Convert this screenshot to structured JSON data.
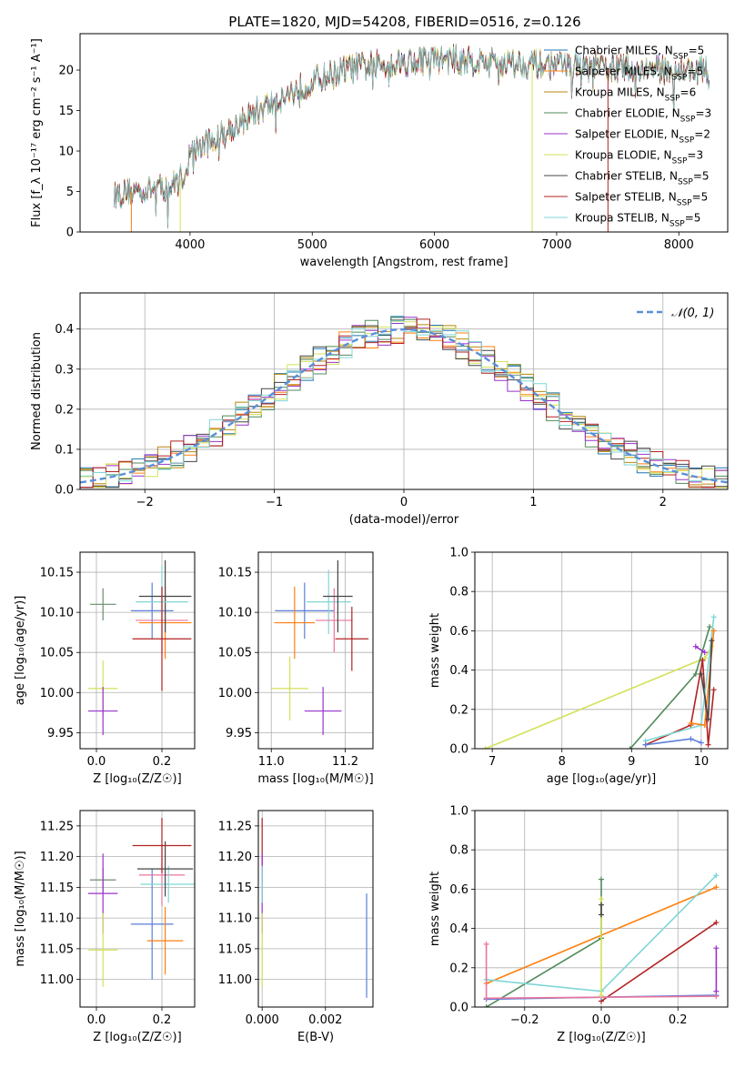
{
  "figure": {
    "title": "PLATE=1820, MJD=54208, FIBERID=0516, z=0.126"
  },
  "chart_data": [
    {
      "id": "spectrum",
      "type": "line",
      "xlabel": "wavelength [Angstrom, rest frame]",
      "ylabel": "Flux [f_λ 10⁻¹⁷ erg cm⁻² s⁻¹ A⁻¹]",
      "xlim": [
        3100,
        8400
      ],
      "ylim": [
        0,
        24.5
      ],
      "xticks": [
        4000,
        5000,
        6000,
        7000,
        8000
      ],
      "yticks": [
        0,
        5,
        10,
        15,
        20
      ],
      "grid": false,
      "legend": "upper-right",
      "x_start": 3380,
      "x_end": 8250,
      "continuum": [
        [
          3380,
          4.6
        ],
        [
          3600,
          5.2
        ],
        [
          3850,
          5.6
        ],
        [
          3950,
          7.0
        ],
        [
          4000,
          9.8
        ],
        [
          4300,
          12.4
        ],
        [
          4500,
          14.5
        ],
        [
          4800,
          17.0
        ],
        [
          5000,
          18.6
        ],
        [
          5300,
          20.2
        ],
        [
          5600,
          20.8
        ],
        [
          6000,
          21.4
        ],
        [
          6500,
          21.0
        ],
        [
          7000,
          20.6
        ],
        [
          7500,
          20.2
        ],
        [
          8000,
          20.0
        ],
        [
          8250,
          19.9
        ]
      ],
      "series": [
        {
          "name": "Chabrier MILES, N_SSP=5",
          "color": "#1f77b4"
        },
        {
          "name": "Salpeter MILES, N_SSP=5",
          "color": "#ff7f0e"
        },
        {
          "name": "Kroupa MILES, N_SSP=6",
          "color": "#b8860b"
        },
        {
          "name": "Chabrier ELODIE, N_SSP=3",
          "color": "#4f8a5a"
        },
        {
          "name": "Salpeter ELODIE, N_SSP=2",
          "color": "#9932cc"
        },
        {
          "name": "Kroupa ELODIE, N_SSP=3",
          "color": "#d4e157"
        },
        {
          "name": "Chabrier STELIB, N_SSP=5",
          "color": "#444444"
        },
        {
          "name": "Salpeter STELIB, N_SSP=5",
          "color": "#b22222"
        },
        {
          "name": "Kroupa STELIB, N_SSP=5",
          "color": "#7fd6d6"
        }
      ]
    },
    {
      "id": "residuals",
      "type": "line",
      "xlabel": "(data-model)/error",
      "ylabel": "Normed distribution",
      "xlim": [
        -2.5,
        2.5
      ],
      "ylim": [
        0,
        0.49
      ],
      "xticks": [
        -2,
        -1,
        0,
        1,
        2
      ],
      "yticks": [
        0.0,
        0.1,
        0.2,
        0.3,
        0.4
      ],
      "grid": true,
      "legend": "upper-right",
      "gaussian_label": "𝒩(0, 1)",
      "gaussian_color": "#5b8fd9"
    },
    {
      "id": "age-vs-z",
      "type": "scatter",
      "xlabel": "Z [log₁₀(Z/Z☉)]",
      "ylabel": "age  [log₁₀(age/yr)]",
      "xlim": [
        -0.05,
        0.3
      ],
      "ylim": [
        9.93,
        10.175
      ],
      "xticks": [
        0.0,
        0.2
      ],
      "yticks": [
        9.95,
        10.0,
        10.05,
        10.1,
        10.15
      ],
      "grid": true,
      "points": [
        {
          "x": 0.02,
          "y": 10.11,
          "xe": 0.04,
          "ye": 0.02,
          "color": "#6b8e6b"
        },
        {
          "x": 0.02,
          "y": 10.005,
          "xe": 0.045,
          "ye": 0.035,
          "color": "#d4e157"
        },
        {
          "x": 0.02,
          "y": 9.977,
          "xe": 0.045,
          "ye": 0.03,
          "color": "#9932cc"
        },
        {
          "x": 0.17,
          "y": 10.102,
          "xe": 0.065,
          "ye": 0.035,
          "color": "#5b7fd9"
        },
        {
          "x": 0.2,
          "y": 10.09,
          "xe": 0.08,
          "ye": 0.04,
          "color": "#e8749e"
        },
        {
          "x": 0.21,
          "y": 10.087,
          "xe": 0.08,
          "ye": 0.045,
          "color": "#ff7f0e"
        },
        {
          "x": 0.21,
          "y": 10.12,
          "xe": 0.08,
          "ye": 0.045,
          "color": "#444444"
        },
        {
          "x": 0.2,
          "y": 10.113,
          "xe": 0.08,
          "ye": 0.045,
          "color": "#7fd6d6"
        },
        {
          "x": 0.2,
          "y": 10.067,
          "xe": 0.09,
          "ye": 0.065,
          "color": "#b22222"
        }
      ]
    },
    {
      "id": "age-vs-mass",
      "type": "scatter",
      "xlabel": "mass [log₁₀(M/M☉)]",
      "ylabel": "",
      "xlim": [
        10.965,
        11.275
      ],
      "ylim": [
        9.93,
        10.175
      ],
      "xticks": [
        11.0,
        11.2
      ],
      "yticks": [
        9.95,
        10.0,
        10.05,
        10.1,
        10.15
      ],
      "grid": true,
      "points": [
        {
          "x": 11.09,
          "y": 10.102,
          "xe": 0.08,
          "ye": 0.035,
          "color": "#5b7fd9"
        },
        {
          "x": 11.063,
          "y": 10.087,
          "xe": 0.055,
          "ye": 0.045,
          "color": "#ff7f0e"
        },
        {
          "x": 11.05,
          "y": 10.005,
          "xe": 0.05,
          "ye": 0.04,
          "color": "#d4e157"
        },
        {
          "x": 11.14,
          "y": 9.977,
          "xe": 0.05,
          "ye": 0.03,
          "color": "#9932cc"
        },
        {
          "x": 11.155,
          "y": 10.113,
          "xe": 0.06,
          "ye": 0.04,
          "color": "#7fd6d6"
        },
        {
          "x": 11.17,
          "y": 10.09,
          "xe": 0.05,
          "ye": 0.04,
          "color": "#e8749e"
        },
        {
          "x": 11.18,
          "y": 10.12,
          "xe": 0.04,
          "ye": 0.045,
          "color": "#444444"
        },
        {
          "x": 11.218,
          "y": 10.067,
          "xe": 0.045,
          "ye": 0.04,
          "color": "#b22222"
        }
      ]
    },
    {
      "id": "weight-vs-age",
      "type": "line",
      "xlabel": "age  [log₁₀(age/yr)]",
      "ylabel": "mass weight",
      "xlim": [
        6.75,
        10.38
      ],
      "ylim": [
        0,
        1.0
      ],
      "xticks": [
        7,
        8,
        9,
        10
      ],
      "yticks": [
        0.0,
        0.2,
        0.4,
        0.6,
        0.8,
        1.0
      ],
      "grid": true,
      "series": [
        {
          "color": "#d4e157",
          "points": [
            [
              6.9,
              0.0
            ],
            [
              10.05,
              0.46
            ],
            [
              10.15,
              0.52
            ]
          ]
        },
        {
          "color": "#4f8a5a",
          "points": [
            [
              8.98,
              0.0
            ],
            [
              9.92,
              0.38
            ],
            [
              10.12,
              0.62
            ]
          ]
        },
        {
          "color": "#b22222",
          "points": [
            [
              9.2,
              0.02
            ],
            [
              9.85,
              0.12
            ],
            [
              10.02,
              0.45
            ],
            [
              10.1,
              0.02
            ],
            [
              10.18,
              0.3
            ]
          ]
        },
        {
          "color": "#7fd6d6",
          "points": [
            [
              9.2,
              0.04
            ],
            [
              10.0,
              0.12
            ],
            [
              10.18,
              0.67
            ]
          ]
        },
        {
          "color": "#5b7fd9",
          "points": [
            [
              9.2,
              0.02
            ],
            [
              9.85,
              0.05
            ],
            [
              10.0,
              0.03
            ]
          ]
        },
        {
          "color": "#ff7f0e",
          "points": [
            [
              9.85,
              0.13
            ],
            [
              10.05,
              0.12
            ],
            [
              10.18,
              0.6
            ]
          ]
        },
        {
          "color": "#9932cc",
          "points": [
            [
              9.92,
              0.52
            ],
            [
              10.05,
              0.49
            ]
          ]
        },
        {
          "color": "#444444",
          "points": [
            [
              10.0,
              0.38
            ],
            [
              10.1,
              0.15
            ],
            [
              10.15,
              0.55
            ]
          ]
        }
      ]
    },
    {
      "id": "mass-vs-z",
      "type": "scatter",
      "xlabel": "Z [log₁₀(Z/Z☉)]",
      "ylabel": "mass [log₁₀(M/M☉)]",
      "xlim": [
        -0.05,
        0.3
      ],
      "ylim": [
        10.955,
        11.275
      ],
      "xticks": [
        0.0,
        0.2
      ],
      "yticks": [
        11.0,
        11.05,
        11.1,
        11.15,
        11.2,
        11.25
      ],
      "grid": true,
      "points": [
        {
          "x": 0.02,
          "y": 11.162,
          "xe": 0.04,
          "ye": 0.02,
          "color": "#6b8e6b"
        },
        {
          "x": 0.02,
          "y": 11.14,
          "xe": 0.045,
          "ye": 0.065,
          "color": "#9932cc"
        },
        {
          "x": 0.02,
          "y": 11.048,
          "xe": 0.045,
          "ye": 0.06,
          "color": "#d4e157"
        },
        {
          "x": 0.17,
          "y": 11.09,
          "xe": 0.065,
          "ye": 0.09,
          "color": "#5b7fd9"
        },
        {
          "x": 0.21,
          "y": 11.063,
          "xe": 0.055,
          "ye": 0.055,
          "color": "#ff7f0e"
        },
        {
          "x": 0.2,
          "y": 11.17,
          "xe": 0.07,
          "ye": 0.05,
          "color": "#e8749e"
        },
        {
          "x": 0.22,
          "y": 11.155,
          "xe": 0.085,
          "ye": 0.03,
          "color": "#7fd6d6"
        },
        {
          "x": 0.21,
          "y": 11.18,
          "xe": 0.085,
          "ye": 0.045,
          "color": "#444444"
        },
        {
          "x": 0.2,
          "y": 11.218,
          "xe": 0.09,
          "ye": 0.045,
          "color": "#b22222"
        }
      ]
    },
    {
      "id": "mass-vs-ebv",
      "type": "scatter",
      "xlabel": "E(B-V)",
      "ylabel": "",
      "xlim": [
        -0.00012,
        0.0035
      ],
      "ylim": [
        10.955,
        11.275
      ],
      "xticks": [
        0.0,
        0.002
      ],
      "xtick_labels": [
        "0.000",
        "0.002"
      ],
      "yticks": [
        11.0,
        11.05,
        11.1,
        11.15,
        11.2,
        11.25
      ],
      "grid": true,
      "points": [
        {
          "x": 0.0,
          "y": 11.218,
          "xe": 0.0,
          "ye": 0.045,
          "color": "#b22222"
        },
        {
          "x": 0.0,
          "y": 11.14,
          "xe": 0.0,
          "ye": 0.065,
          "color": "#9932cc"
        },
        {
          "x": 0.0,
          "y": 11.048,
          "xe": 0.0,
          "ye": 0.06,
          "color": "#d4e157"
        },
        {
          "x": 0.0,
          "y": 11.155,
          "xe": 0.0,
          "ye": 0.03,
          "color": "#7fd6d6"
        },
        {
          "x": 0.0033,
          "y": 11.055,
          "xe": 0.0,
          "ye": 0.085,
          "color": "#5b7fd9"
        }
      ]
    },
    {
      "id": "weight-vs-z",
      "type": "line",
      "xlabel": "Z [log₁₀(Z/Z☉)]",
      "ylabel": "mass weight",
      "xlim": [
        -0.33,
        0.33
      ],
      "ylim": [
        0,
        1.0
      ],
      "xticks": [
        -0.2,
        0.0,
        0.2
      ],
      "yticks": [
        0.0,
        0.2,
        0.4,
        0.6,
        0.8,
        1.0
      ],
      "grid": true,
      "series": [
        {
          "color": "#ff7f0e",
          "points": [
            [
              -0.3,
              0.12
            ],
            [
              0.3,
              0.61
            ]
          ]
        },
        {
          "color": "#4f8a5a",
          "points": [
            [
              -0.3,
              0.0
            ],
            [
              0.0,
              0.35
            ],
            [
              0.0,
              0.65
            ]
          ]
        },
        {
          "color": "#b22222",
          "points": [
            [
              0.0,
              0.03
            ],
            [
              0.3,
              0.43
            ]
          ]
        },
        {
          "color": "#7fd6d6",
          "points": [
            [
              -0.3,
              0.14
            ],
            [
              0.0,
              0.08
            ],
            [
              0.3,
              0.67
            ]
          ]
        },
        {
          "color": "#5b7fd9",
          "points": [
            [
              -0.3,
              0.04
            ],
            [
              0.0,
              0.05
            ],
            [
              0.3,
              0.06
            ]
          ]
        },
        {
          "color": "#e8749e",
          "points": [
            [
              -0.3,
              0.32
            ],
            [
              -0.3,
              0.045
            ],
            [
              0.3,
              0.055
            ]
          ]
        },
        {
          "color": "#d4e157",
          "points": [
            [
              0.0,
              0.06
            ],
            [
              0.0,
              0.55
            ]
          ]
        },
        {
          "color": "#444444",
          "points": [
            [
              0.0,
              0.47
            ],
            [
              0.0,
              0.52
            ]
          ]
        },
        {
          "color": "#9932cc",
          "points": [
            [
              0.3,
              0.08
            ],
            [
              0.3,
              0.3
            ]
          ]
        }
      ]
    }
  ]
}
